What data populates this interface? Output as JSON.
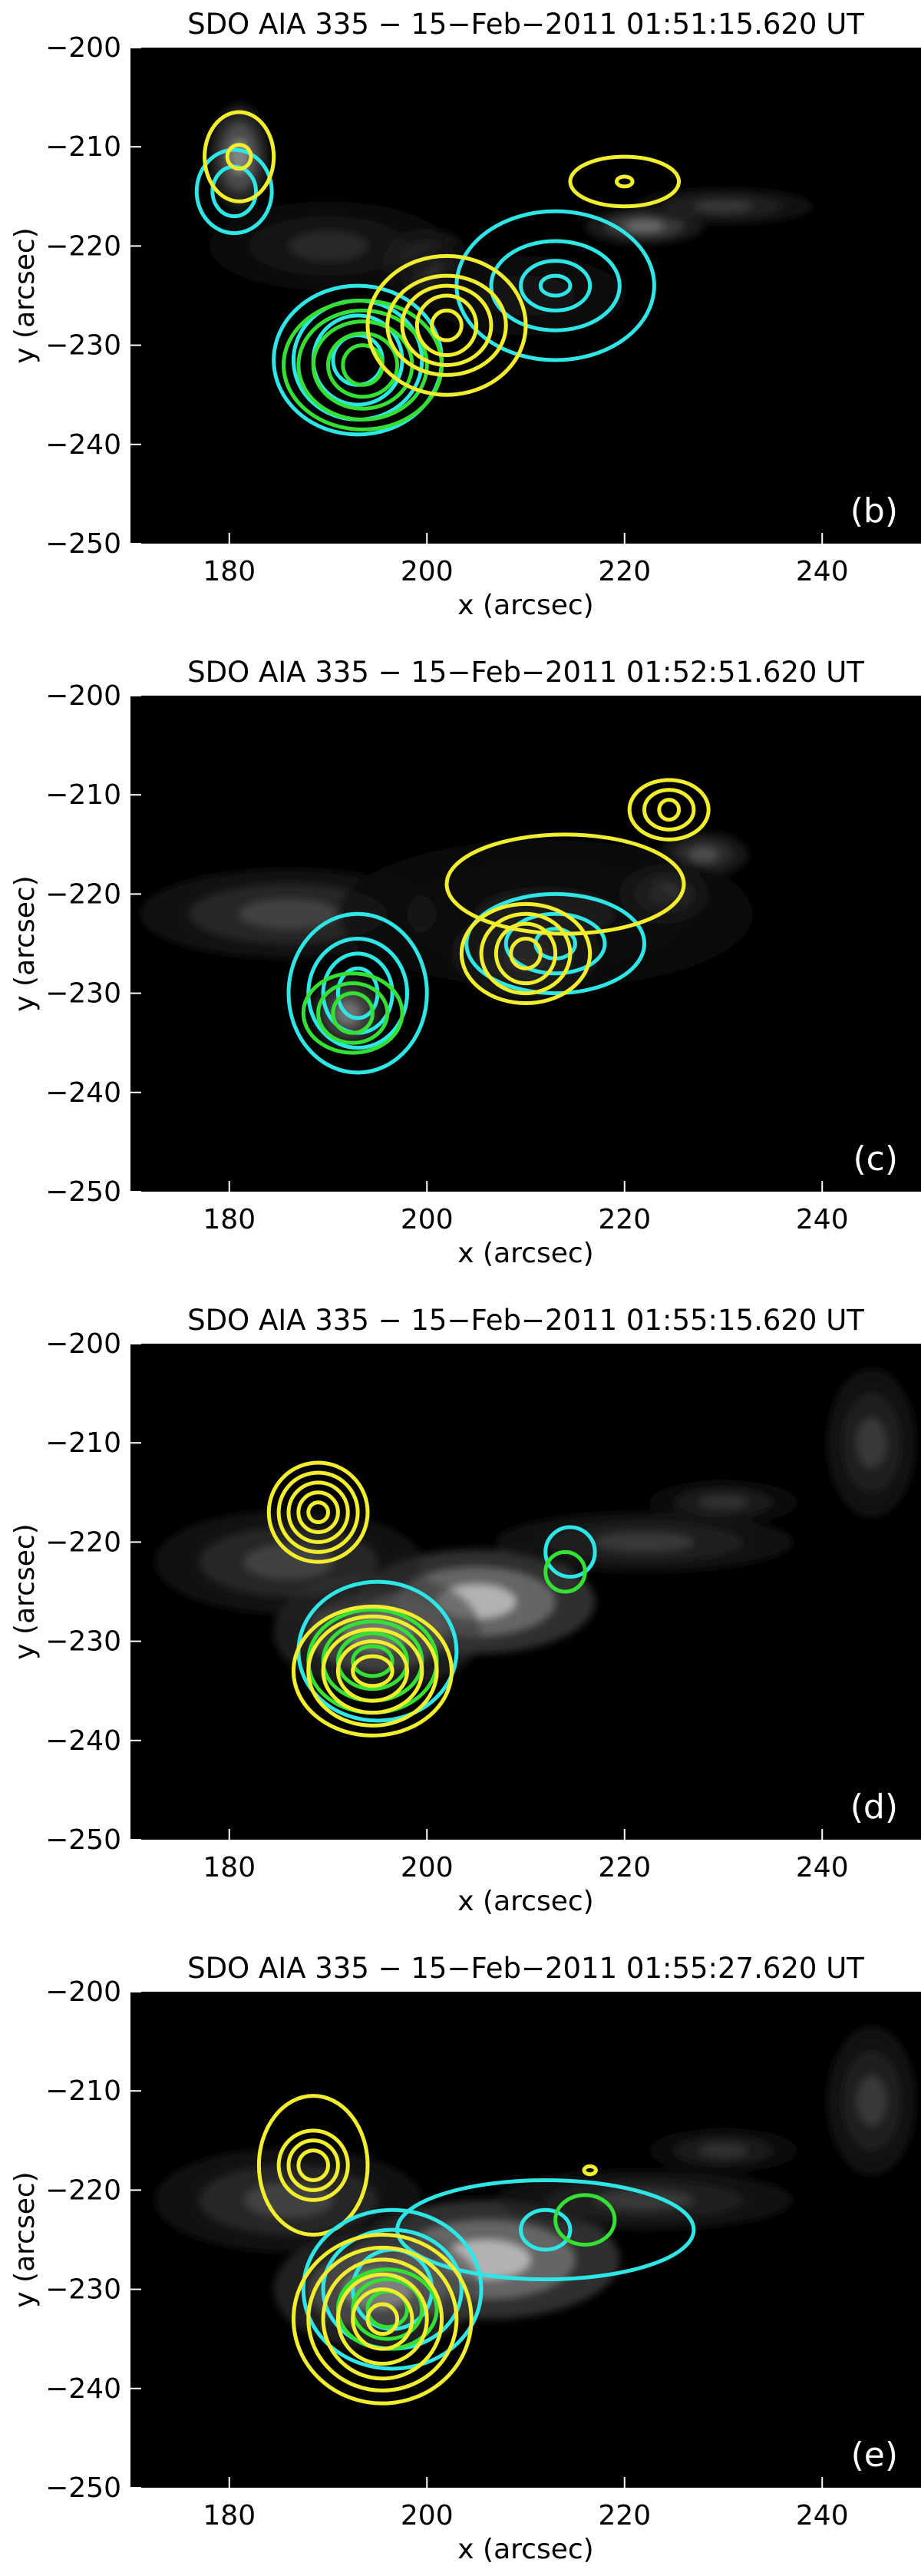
{
  "chart_data": [
    {
      "type": "contour",
      "title": "SDO AIA 335 − 15−Feb−2011 01:51:15.620 UT",
      "panel_label": "(b)",
      "xlabel": "x (arcsec)",
      "ylabel": "y (arcsec)",
      "xlim": [
        170,
        250
      ],
      "ylim": [
        -250,
        -200
      ],
      "xticks": [
        180,
        200,
        220,
        240
      ],
      "yticks": [
        -200,
        -210,
        -220,
        -230,
        -240,
        -250
      ],
      "background": "grayscale EUV image",
      "contour_colors": {
        "cyan": "#2ee6e6",
        "yellow": "#f2ee2e",
        "green": "#33e033"
      },
      "bright_features": [
        {
          "x": 181,
          "y": -211,
          "sx": 2.0,
          "sy": 3.5,
          "amp": 0.7
        },
        {
          "x": 200,
          "y": -222,
          "sx": 3.0,
          "sy": 2.5,
          "amp": 0.45
        },
        {
          "x": 222,
          "y": -218,
          "sx": 4.0,
          "sy": 1.2,
          "amp": 0.55
        },
        {
          "x": 230,
          "y": -216,
          "sx": 6.0,
          "sy": 1.2,
          "amp": 0.3
        },
        {
          "x": 190,
          "y": -220,
          "sx": 8.0,
          "sy": 3.0,
          "amp": 0.22
        },
        {
          "x": 210,
          "y": -225,
          "sx": 10.0,
          "sy": 4.0,
          "amp": 0.12
        }
      ],
      "sources": [
        {
          "color": "cyan",
          "cx": 180.5,
          "cy": -214.5,
          "rx": [
            2.2,
            3.8
          ],
          "ry": [
            2.5,
            4.2
          ]
        },
        {
          "color": "yellow",
          "cx": 181,
          "cy": -211,
          "rx": [
            1.2,
            3.5
          ],
          "ry": [
            1.2,
            4.5
          ]
        },
        {
          "color": "cyan",
          "cx": 193,
          "cy": -231.5,
          "rx": [
            2.5,
            4.5,
            6.5,
            8.5
          ],
          "ry": [
            2.5,
            4.5,
            6.0,
            7.5
          ]
        },
        {
          "color": "green",
          "cx": 193.5,
          "cy": -232,
          "rx": [
            2.0,
            3.5,
            5.0,
            6.5,
            8.0
          ],
          "ry": [
            2.0,
            3.2,
            4.4,
            5.5,
            6.5
          ]
        },
        {
          "color": "cyan",
          "cx": 213,
          "cy": -224,
          "rx": [
            1.5,
            3.5,
            6.5,
            10.0
          ],
          "ry": [
            1.0,
            2.5,
            4.5,
            7.5
          ]
        },
        {
          "color": "yellow",
          "cx": 202,
          "cy": -228,
          "rx": [
            1.5,
            3.0,
            4.5,
            6.0,
            8.0
          ],
          "ry": [
            1.5,
            3.0,
            4.0,
            5.0,
            7.0
          ]
        },
        {
          "color": "yellow",
          "cx": 220,
          "cy": -213.5,
          "rx": [
            0.8,
            5.5
          ],
          "ry": [
            0.5,
            2.5
          ]
        }
      ]
    },
    {
      "type": "contour",
      "title": "SDO AIA 335 − 15−Feb−2011 01:52:51.620 UT",
      "panel_label": "(c)",
      "xlabel": "x (arcsec)",
      "ylabel": "y (arcsec)",
      "xlim": [
        170,
        250
      ],
      "ylim": [
        -250,
        -200
      ],
      "xticks": [
        180,
        200,
        220,
        240
      ],
      "yticks": [
        -200,
        -210,
        -220,
        -230,
        -240,
        -250
      ],
      "background": "grayscale EUV image",
      "contour_colors": {
        "cyan": "#2ee6e6",
        "yellow": "#f2ee2e",
        "green": "#33e033"
      },
      "bright_features": [
        {
          "x": 186,
          "y": -222,
          "sx": 10.0,
          "sy": 3.0,
          "amp": 0.35
        },
        {
          "x": 192,
          "y": -232,
          "sx": 2.5,
          "sy": 2.5,
          "amp": 0.6
        },
        {
          "x": 210,
          "y": -226,
          "sx": 5.0,
          "sy": 3.0,
          "amp": 0.55
        },
        {
          "x": 224,
          "y": -220,
          "sx": 3.0,
          "sy": 2.0,
          "amp": 0.55
        },
        {
          "x": 228,
          "y": -216,
          "sx": 3.0,
          "sy": 1.5,
          "amp": 0.4
        },
        {
          "x": 212,
          "y": -222,
          "sx": 14.0,
          "sy": 5.0,
          "amp": 0.15
        }
      ],
      "sources": [
        {
          "color": "cyan",
          "cx": 193,
          "cy": -230,
          "rx": [
            2.0,
            3.5,
            5.0,
            7.0
          ],
          "ry": [
            2.5,
            4.0,
            5.5,
            8.0
          ]
        },
        {
          "color": "green",
          "cx": 192.5,
          "cy": -232,
          "rx": [
            2.0,
            3.5,
            5.0
          ],
          "ry": [
            2.0,
            3.0,
            4.0
          ]
        },
        {
          "color": "cyan",
          "cx": 213,
          "cy": -225,
          "rx": [
            2.0,
            5.0,
            9.0
          ],
          "ry": [
            1.5,
            3.0,
            5.0
          ]
        },
        {
          "color": "yellow",
          "cx": 210,
          "cy": -226,
          "rx": [
            1.5,
            3.0,
            4.5,
            6.5
          ],
          "ry": [
            1.5,
            3.0,
            4.0,
            5.0
          ]
        },
        {
          "color": "yellow",
          "cx": 224.5,
          "cy": -211.5,
          "rx": [
            1.0,
            2.5,
            4.0
          ],
          "ry": [
            1.0,
            2.0,
            3.0
          ]
        },
        {
          "color": "yellow",
          "cx": 214,
          "cy": -219,
          "rx": [
            12.0
          ],
          "ry": [
            5.0
          ]
        }
      ]
    },
    {
      "type": "contour",
      "title": "SDO AIA 335 − 15−Feb−2011 01:55:15.620 UT",
      "panel_label": "(d)",
      "xlabel": "x (arcsec)",
      "ylabel": "y (arcsec)",
      "xlim": [
        170,
        250
      ],
      "ylim": [
        -250,
        -200
      ],
      "xticks": [
        180,
        200,
        220,
        240
      ],
      "yticks": [
        -200,
        -210,
        -220,
        -230,
        -240,
        -250
      ],
      "background": "grayscale EUV image",
      "contour_colors": {
        "cyan": "#2ee6e6",
        "yellow": "#f2ee2e",
        "green": "#33e033"
      },
      "bright_features": [
        {
          "x": 205,
          "y": -226,
          "sx": 8.0,
          "sy": 3.5,
          "amp": 0.95
        },
        {
          "x": 195,
          "y": -229,
          "sx": 7.0,
          "sy": 4.0,
          "amp": 0.6
        },
        {
          "x": 186,
          "y": -222,
          "sx": 9.0,
          "sy": 3.5,
          "amp": 0.35
        },
        {
          "x": 222,
          "y": -220,
          "sx": 10.0,
          "sy": 2.0,
          "amp": 0.3
        },
        {
          "x": 230,
          "y": -216,
          "sx": 5.0,
          "sy": 1.5,
          "amp": 0.25
        },
        {
          "x": 245,
          "y": -210,
          "sx": 3.0,
          "sy": 5.0,
          "amp": 0.3
        }
      ],
      "sources": [
        {
          "color": "yellow",
          "cx": 189,
          "cy": -217,
          "rx": [
            1.0,
            2.0,
            3.0,
            4.0,
            5.0
          ],
          "ry": [
            1.0,
            2.0,
            3.0,
            4.0,
            5.0
          ]
        },
        {
          "color": "cyan",
          "cx": 195,
          "cy": -231,
          "rx": [
            8.0
          ],
          "ry": [
            7.0
          ]
        },
        {
          "color": "green",
          "cx": 194.5,
          "cy": -232,
          "rx": [
            2.0,
            3.5,
            5.0,
            6.5
          ],
          "ry": [
            1.5,
            2.8,
            4.0,
            5.2
          ]
        },
        {
          "color": "yellow",
          "cx": 194.5,
          "cy": -233,
          "rx": [
            2.0,
            3.5,
            5.0,
            6.5,
            8.0
          ],
          "ry": [
            1.5,
            3.0,
            4.2,
            5.5,
            6.5
          ]
        },
        {
          "color": "cyan",
          "cx": 214.5,
          "cy": -221,
          "rx": [
            2.5
          ],
          "ry": [
            2.5
          ]
        },
        {
          "color": "green",
          "cx": 214,
          "cy": -223,
          "rx": [
            2.0
          ],
          "ry": [
            2.0
          ]
        }
      ]
    },
    {
      "type": "contour",
      "title": "SDO AIA 335 − 15−Feb−2011 01:55:27.620 UT",
      "panel_label": "(e)",
      "xlabel": "x (arcsec)",
      "ylabel": "y (arcsec)",
      "xlim": [
        170,
        250
      ],
      "ylim": [
        -250,
        -200
      ],
      "xticks": [
        180,
        200,
        220,
        240
      ],
      "yticks": [
        -200,
        -210,
        -220,
        -230,
        -240,
        -250
      ],
      "background": "grayscale EUV image",
      "contour_colors": {
        "cyan": "#2ee6e6",
        "yellow": "#f2ee2e",
        "green": "#33e033"
      },
      "bright_features": [
        {
          "x": 206,
          "y": -227,
          "sx": 9.0,
          "sy": 4.0,
          "amp": 0.95
        },
        {
          "x": 195,
          "y": -230,
          "sx": 7.0,
          "sy": 4.0,
          "amp": 0.65
        },
        {
          "x": 186,
          "y": -221,
          "sx": 9.0,
          "sy": 3.5,
          "amp": 0.35
        },
        {
          "x": 222,
          "y": -221,
          "sx": 10.0,
          "sy": 2.0,
          "amp": 0.3
        },
        {
          "x": 230,
          "y": -216,
          "sx": 5.0,
          "sy": 1.5,
          "amp": 0.25
        },
        {
          "x": 245,
          "y": -211,
          "sx": 3.0,
          "sy": 5.0,
          "amp": 0.3
        }
      ],
      "sources": [
        {
          "color": "yellow",
          "cx": 188.5,
          "cy": -217.5,
          "rx": [
            1.5,
            2.5,
            3.5,
            5.5
          ],
          "ry": [
            1.5,
            2.5,
            3.5,
            7.0
          ]
        },
        {
          "color": "cyan",
          "cx": 212,
          "cy": -224,
          "rx": [
            2.5,
            15.0
          ],
          "ry": [
            2.0,
            5.0
          ]
        },
        {
          "color": "cyan",
          "cx": 196.5,
          "cy": -230,
          "rx": [
            4.0,
            7.0,
            9.0
          ],
          "ry": [
            4.0,
            6.0,
            8.0
          ]
        },
        {
          "color": "green",
          "cx": 196,
          "cy": -232,
          "rx": [
            2.0,
            3.5,
            5.0
          ],
          "ry": [
            1.8,
            3.0,
            4.0
          ]
        },
        {
          "color": "yellow",
          "cx": 195.5,
          "cy": -233,
          "rx": [
            1.5,
            3.0,
            4.5,
            6.0,
            7.5,
            9.0
          ],
          "ry": [
            1.5,
            3.0,
            4.5,
            6.0,
            7.2,
            8.5
          ]
        },
        {
          "color": "green",
          "cx": 216,
          "cy": -223,
          "rx": [
            3.0
          ],
          "ry": [
            2.5
          ]
        },
        {
          "color": "yellow",
          "cx": 216.5,
          "cy": -218,
          "rx": [
            0.6
          ],
          "ry": [
            0.4
          ]
        }
      ]
    }
  ]
}
